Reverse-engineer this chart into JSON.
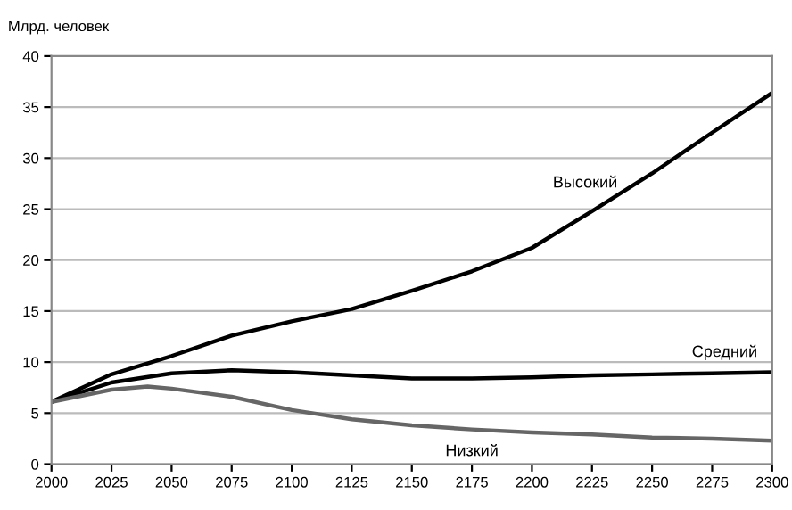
{
  "chart_data": {
    "type": "line",
    "ylabel": "Млрд. человек",
    "xlim": [
      2000,
      2300
    ],
    "xticks": [
      2000,
      2025,
      2050,
      2075,
      2100,
      2125,
      2150,
      2175,
      2200,
      2225,
      2250,
      2275,
      2300
    ],
    "ylim": [
      0,
      40
    ],
    "yticks": [
      0,
      5,
      10,
      15,
      20,
      25,
      30,
      35,
      40
    ],
    "grid": "y",
    "legend": false,
    "marker": "none",
    "line_style": "solid",
    "series": [
      {
        "name": "Высокий",
        "color": "#000000",
        "x": [
          2000,
          2025,
          2050,
          2075,
          2100,
          2125,
          2150,
          2175,
          2200,
          2225,
          2250,
          2275,
          2300
        ],
        "values": [
          6.1,
          8.8,
          10.6,
          12.6,
          14.0,
          15.2,
          17.0,
          18.9,
          21.2,
          24.8,
          28.5,
          32.5,
          36.4
        ]
      },
      {
        "name": "Средний",
        "color": "#000000",
        "x": [
          2000,
          2025,
          2050,
          2075,
          2100,
          2125,
          2150,
          2175,
          2200,
          2225,
          2250,
          2275,
          2300
        ],
        "values": [
          6.1,
          8.0,
          8.9,
          9.2,
          9.0,
          8.7,
          8.4,
          8.4,
          8.5,
          8.7,
          8.8,
          8.9,
          9.0
        ]
      },
      {
        "name": "Низкий",
        "color": "#666666",
        "x": [
          2000,
          2025,
          2040,
          2050,
          2075,
          2100,
          2125,
          2150,
          2175,
          2200,
          2225,
          2250,
          2275,
          2300
        ],
        "values": [
          6.1,
          7.3,
          7.6,
          7.4,
          6.6,
          5.3,
          4.4,
          3.8,
          3.4,
          3.1,
          2.9,
          2.6,
          2.5,
          2.3
        ]
      }
    ]
  }
}
